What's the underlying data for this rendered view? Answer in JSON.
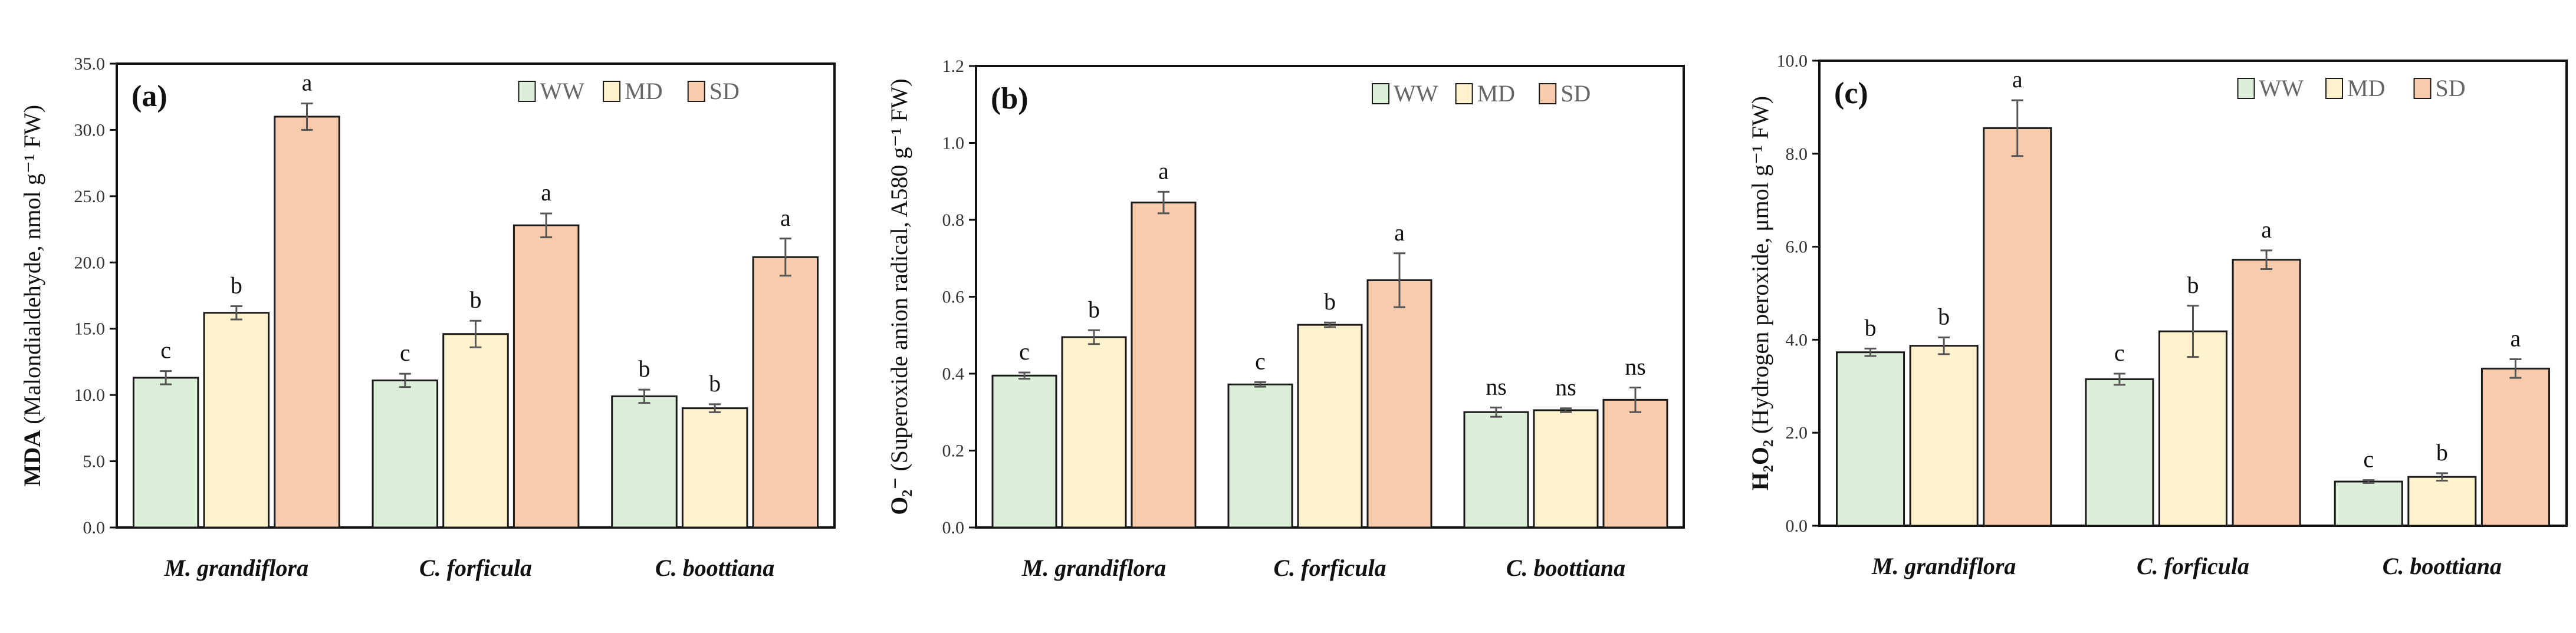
{
  "colors": {
    "WW": "#dcefd8",
    "MD": "#fff2cc",
    "SD": "#f8cbad",
    "stroke": "#1a1a1a",
    "error_bar": "#555555"
  },
  "legend": [
    "WW",
    "MD",
    "SD"
  ],
  "chart_data": [
    {
      "type": "bar",
      "panel_label": "(a)",
      "title": "",
      "ylabel_bold": "MDA",
      "ylabel_rest": " (Malondialdehyde, nmol g⁻¹ FW)",
      "ylim": [
        0,
        35
      ],
      "yticks": [
        "0.0",
        "5.0",
        "10.0",
        "15.0",
        "20.0",
        "25.0",
        "30.0",
        "35.0"
      ],
      "yticks_values": [
        0,
        5,
        10,
        15,
        20,
        25,
        30,
        35
      ],
      "categories": [
        "M. grandiflora",
        "C. forficula",
        "C. boottiana"
      ],
      "series": [
        {
          "name": "WW",
          "values": [
            11.3,
            11.1,
            9.9
          ],
          "errors": [
            0.5,
            0.5,
            0.5
          ],
          "letters": [
            "c",
            "c",
            "b"
          ]
        },
        {
          "name": "MD",
          "values": [
            16.2,
            14.6,
            9.0
          ],
          "errors": [
            0.5,
            1.0,
            0.3
          ],
          "letters": [
            "b",
            "b",
            "b"
          ]
        },
        {
          "name": "SD",
          "values": [
            31.0,
            22.8,
            20.4
          ],
          "errors": [
            1.0,
            0.9,
            1.4
          ],
          "letters": [
            "a",
            "a",
            "a"
          ]
        }
      ]
    },
    {
      "type": "bar",
      "panel_label": "(b)",
      "title": "",
      "ylabel_bold": "O₂⁻",
      "ylabel_rest": " (Superoxide anion radical, A580 g⁻¹ FW)",
      "ylim": [
        0,
        1.2
      ],
      "yticks": [
        "0.0",
        "0.2",
        "0.4",
        "0.6",
        "0.8",
        "1.0",
        "1.2"
      ],
      "yticks_values": [
        0,
        0.2,
        0.4,
        0.6,
        0.8,
        1.0,
        1.2
      ],
      "categories": [
        "M. grandiflora",
        "C. forficula",
        "C. boottiana"
      ],
      "series": [
        {
          "name": "WW",
          "values": [
            0.395,
            0.372,
            0.3
          ],
          "errors": [
            0.008,
            0.006,
            0.012
          ],
          "letters": [
            "c",
            "c",
            "ns"
          ]
        },
        {
          "name": "MD",
          "values": [
            0.495,
            0.527,
            0.305
          ],
          "errors": [
            0.018,
            0.006,
            0.005
          ],
          "letters": [
            "b",
            "b",
            "ns"
          ]
        },
        {
          "name": "SD",
          "values": [
            0.845,
            0.643,
            0.332
          ],
          "errors": [
            0.028,
            0.07,
            0.032
          ],
          "letters": [
            "a",
            "a",
            "ns"
          ]
        }
      ]
    },
    {
      "type": "bar",
      "panel_label": "(c)",
      "title": "",
      "ylabel_bold": "H₂O₂",
      "ylabel_rest": " (Hydrogen peroxide, μmol g⁻¹ FW)",
      "ylim": [
        0,
        10
      ],
      "yticks": [
        "0.0",
        "2.0",
        "4.0",
        "6.0",
        "8.0",
        "10.0"
      ],
      "yticks_values": [
        0,
        2,
        4,
        6,
        8,
        10
      ],
      "categories": [
        "M. grandiflora",
        "C. forficula",
        "C. boottiana"
      ],
      "series": [
        {
          "name": "WW",
          "values": [
            3.73,
            3.15,
            0.95
          ],
          "errors": [
            0.08,
            0.12,
            0.03
          ],
          "letters": [
            "b",
            "c",
            "c"
          ]
        },
        {
          "name": "MD",
          "values": [
            3.87,
            4.18,
            1.05
          ],
          "errors": [
            0.18,
            0.55,
            0.08
          ],
          "letters": [
            "b",
            "b",
            "b"
          ]
        },
        {
          "name": "SD",
          "values": [
            8.55,
            5.72,
            3.38
          ],
          "errors": [
            0.6,
            0.2,
            0.2
          ],
          "letters": [
            "a",
            "a",
            "a"
          ]
        }
      ]
    }
  ]
}
